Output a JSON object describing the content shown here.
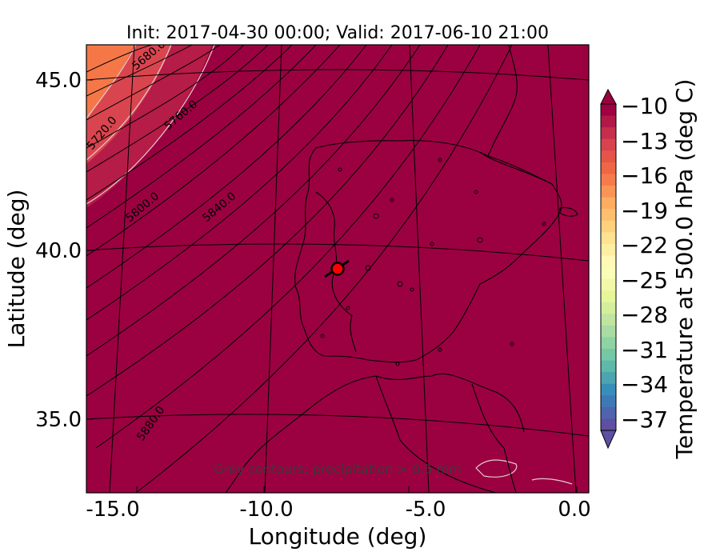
{
  "figure": {
    "title": "Init: 2017-04-30 00:00; Valid: 2017-06-10 21:00",
    "xlabel": "Longitude (deg)",
    "ylabel": "Latitude (deg)",
    "x_ticks": [
      "-15.0",
      "-10.0",
      "-5.0",
      "0.0"
    ],
    "y_ticks": [
      "45.0",
      "40.0",
      "35.0"
    ],
    "note": "Grey contours: precipitation > 0.5 mm",
    "colorbar": {
      "label": "Temperature at 500.0 hPa (deg C)",
      "ticks": [
        "−10",
        "−13",
        "−16",
        "−19",
        "−22",
        "−25",
        "−28",
        "−31",
        "−34",
        "−37"
      ],
      "colormap": "Spectral"
    },
    "geopotential_contour_labels": [
      "5680.0",
      "5720.0",
      "5760.0",
      "5800.0",
      "5840.0",
      "5880.0"
    ],
    "fill_color": "#9b0141",
    "marker_color": "#ff0000",
    "marker_position": {
      "lon": -7.6,
      "lat": 39.4
    }
  },
  "chart_data": {
    "type": "heatmap",
    "title": "Init: 2017-04-30 00:00; Valid: 2017-06-10 21:00",
    "xlabel": "Longitude (deg)",
    "ylabel": "Latitude (deg)",
    "xlim": [
      -16.0,
      0.3
    ],
    "ylim": [
      32.8,
      46.0
    ],
    "colorbar_range": [
      -38,
      -10
    ],
    "dominant_temperature": -10,
    "geopotential_contours": [
      5680,
      5720,
      5760,
      5800,
      5840,
      5880
    ]
  }
}
